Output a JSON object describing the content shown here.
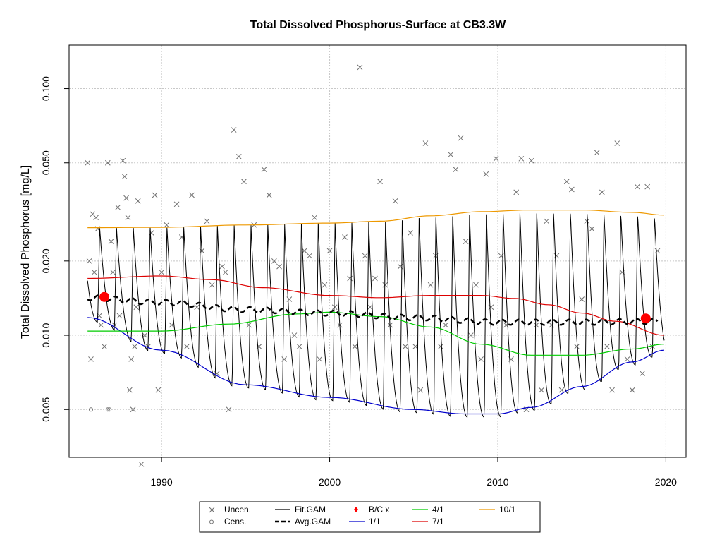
{
  "chart_data": {
    "type": "scatter",
    "title": "Total Dissolved Phosphorus-Surface at CB3.3W",
    "xlabel": "",
    "ylabel": "Total Dissolved Phosphorus [mg/L]",
    "xlim": [
      1984.5,
      2021.2
    ],
    "ylim": [
      0.0032,
      0.15
    ],
    "y_scale": "log",
    "grid": true,
    "legend_placement": "bottom-outside",
    "x_ticks": [
      "1990",
      "2000",
      "2010",
      "2020"
    ],
    "x_tick_values": [
      1990,
      2000,
      2010,
      2020
    ],
    "y_ticks": [
      "0.005",
      "0.010",
      "0.020",
      "0.050",
      "0.100"
    ],
    "y_tick_values": [
      0.005,
      0.01,
      0.02,
      0.05,
      0.1
    ],
    "colors": {
      "observed": "#707070",
      "fit_gam": "#000000",
      "avg_gam": "#000000",
      "bc": "#ff0000",
      "q1": "#0000cc",
      "q4": "#00cc00",
      "q7": "#dd0000",
      "q10": "#ee9900"
    },
    "legend": [
      {
        "label": "Uncen.",
        "symbol": "x"
      },
      {
        "label": "Cens.",
        "symbol": "o"
      },
      {
        "label": "Fit.GAM",
        "symbol": "line"
      },
      {
        "label": "Avg.GAM",
        "symbol": "dashed"
      },
      {
        "label": "B/C x",
        "symbol": "diamond"
      },
      {
        "label": "1/1",
        "symbol": "line"
      },
      {
        "label": "4/1",
        "symbol": "line"
      },
      {
        "label": "7/1",
        "symbol": "line"
      },
      {
        "label": "10/1",
        "symbol": "line"
      }
    ],
    "uncensored": {
      "x": [
        1985.6,
        1985.7,
        1985.8,
        1985.9,
        1986.0,
        1986.1,
        1986.2,
        1986.3,
        1986.4,
        1986.6,
        1986.8,
        1987.0,
        1987.1,
        1987.2,
        1987.4,
        1987.5,
        1987.7,
        1987.8,
        1987.9,
        1988.0,
        1988.1,
        1988.2,
        1988.3,
        1988.4,
        1988.5,
        1988.6,
        1988.8,
        1989.0,
        1989.2,
        1989.4,
        1989.6,
        1989.8,
        1990.0,
        1990.3,
        1990.6,
        1990.9,
        1991.2,
        1991.5,
        1991.8,
        1992.1,
        1992.4,
        1992.7,
        1993.0,
        1993.3,
        1993.6,
        1993.8,
        1994.0,
        1994.3,
        1994.6,
        1994.9,
        1995.2,
        1995.5,
        1995.8,
        1996.1,
        1996.4,
        1996.7,
        1997.0,
        1997.3,
        1997.6,
        1997.9,
        1998.2,
        1998.5,
        1998.8,
        1999.1,
        1999.4,
        1999.7,
        2000.0,
        2000.3,
        2000.6,
        2000.9,
        2001.2,
        2001.5,
        2001.8,
        2002.1,
        2002.4,
        2002.7,
        2003.0,
        2003.3,
        2003.6,
        2003.9,
        2004.2,
        2004.5,
        2004.8,
        2005.1,
        2005.4,
        2005.7,
        2006.0,
        2006.3,
        2006.6,
        2006.9,
        2007.2,
        2007.5,
        2007.8,
        2008.1,
        2008.4,
        2008.7,
        2009.0,
        2009.3,
        2009.6,
        2009.9,
        2010.2,
        2010.5,
        2010.8,
        2011.1,
        2011.4,
        2011.7,
        2012.0,
        2012.3,
        2012.6,
        2012.9,
        2013.2,
        2013.5,
        2013.8,
        2014.1,
        2014.4,
        2014.7,
        2015.0,
        2015.3,
        2015.6,
        2015.9,
        2016.2,
        2016.5,
        2016.8,
        2017.1,
        2017.4,
        2017.7,
        2018.0,
        2018.3,
        2018.6,
        2018.9,
        2019.2,
        2019.5
      ],
      "y": [
        0.05,
        0.02,
        0.008,
        0.031,
        0.018,
        0.03,
        0.027,
        0.012,
        0.011,
        0.009,
        0.05,
        0.024,
        0.018,
        0.011,
        0.033,
        0.012,
        0.051,
        0.044,
        0.036,
        0.03,
        0.006,
        0.008,
        0.005,
        0.009,
        0.013,
        0.035,
        0.003,
        0.01,
        0.009,
        0.026,
        0.037,
        0.006,
        0.018,
        0.028,
        0.011,
        0.034,
        0.025,
        0.009,
        0.037,
        0.013,
        0.022,
        0.029,
        0.016,
        0.007,
        0.019,
        0.018,
        0.005,
        0.068,
        0.053,
        0.042,
        0.011,
        0.028,
        0.009,
        0.047,
        0.037,
        0.02,
        0.019,
        0.008,
        0.014,
        0.01,
        0.009,
        0.022,
        0.021,
        0.03,
        0.008,
        0.016,
        0.022,
        0.013,
        0.011,
        0.025,
        0.017,
        0.009,
        0.122,
        0.021,
        0.013,
        0.017,
        0.042,
        0.016,
        0.011,
        0.035,
        0.019,
        0.009,
        0.026,
        0.009,
        0.006,
        0.06,
        0.016,
        0.021,
        0.009,
        0.011,
        0.054,
        0.047,
        0.063,
        0.024,
        0.01,
        0.016,
        0.008,
        0.045,
        0.013,
        0.052,
        0.021,
        0.011,
        0.008,
        0.038,
        0.052,
        0.005,
        0.051,
        0.011,
        0.006,
        0.029,
        0.011,
        0.021,
        0.006,
        0.042,
        0.039,
        0.009,
        0.014,
        0.029,
        0.027,
        0.055,
        0.038,
        0.009,
        0.006,
        0.06,
        0.018,
        0.008,
        0.006,
        0.04,
        0.007,
        0.04,
        0.009,
        0.022
      ]
    },
    "censored": {
      "x": [
        1985.8,
        1986.8,
        1986.9
      ],
      "y": [
        0.005,
        0.005,
        0.005
      ]
    },
    "fit_gam": {
      "x_start": 1985.6,
      "x_end": 2019.9,
      "seasonal_peak_month_fraction": 0.2
    },
    "avg_gam": {
      "x": [
        1985.6,
        1990.0,
        1995.0,
        2000.0,
        2005.0,
        2010.0,
        2015.0,
        2019.5
      ],
      "y": [
        0.0142,
        0.0136,
        0.0127,
        0.0123,
        0.0118,
        0.0113,
        0.0113,
        0.0114
      ]
    },
    "bc_points": {
      "x": [
        1986.6,
        2018.8
      ],
      "y": [
        0.0143,
        0.0117
      ]
    },
    "q1": {
      "label": "1/1",
      "x": [
        1985.6,
        1990.0,
        1995.0,
        2000.0,
        2005.0,
        2008.0,
        2010.0,
        2012.0,
        2015.0,
        2018.0,
        2019.9
      ],
      "y": [
        0.0118,
        0.0087,
        0.0063,
        0.0056,
        0.005,
        0.0048,
        0.0048,
        0.0051,
        0.0062,
        0.0078,
        0.0087
      ]
    },
    "q4": {
      "label": "4/1",
      "x": [
        1985.6,
        1990.0,
        1994.0,
        1998.0,
        2000.0,
        2003.0,
        2006.0,
        2009.0,
        2012.0,
        2015.0,
        2018.0,
        2019.9
      ],
      "y": [
        0.0104,
        0.0104,
        0.0111,
        0.0122,
        0.0124,
        0.0119,
        0.0108,
        0.0092,
        0.0083,
        0.0083,
        0.0088,
        0.0092
      ]
    },
    "q7": {
      "label": "7/1",
      "x": [
        1985.6,
        1990.0,
        1993.0,
        1996.0,
        2000.0,
        2003.0,
        2006.0,
        2009.0,
        2011.0,
        2013.0,
        2015.0,
        2017.0,
        2019.9
      ],
      "y": [
        0.017,
        0.0174,
        0.0168,
        0.0156,
        0.0145,
        0.0142,
        0.0145,
        0.0145,
        0.0141,
        0.0133,
        0.0123,
        0.0114,
        0.01
      ]
    },
    "q10": {
      "label": "10/1",
      "x": [
        1985.6,
        1990.0,
        1995.0,
        2000.0,
        2003.0,
        2006.0,
        2009.0,
        2012.0,
        2015.0,
        2018.0,
        2019.9
      ],
      "y": [
        0.0273,
        0.0274,
        0.028,
        0.0285,
        0.029,
        0.0305,
        0.0317,
        0.0322,
        0.0322,
        0.0315,
        0.0307
      ]
    }
  }
}
